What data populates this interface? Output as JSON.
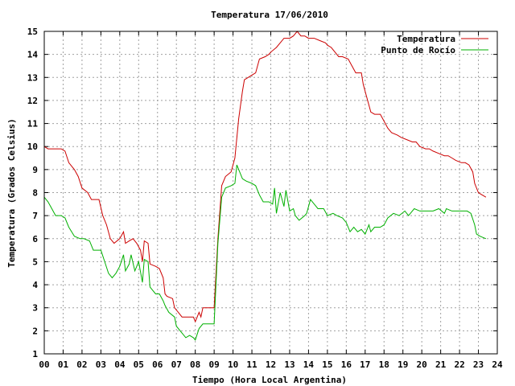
{
  "chart_data": {
    "type": "line",
    "title": "Temperatura 17/06/2010",
    "xlabel": "Tiempo (Hora Local Argentina)",
    "ylabel": "Temperatura (Grados Celsius)",
    "xlim": [
      0,
      24
    ],
    "ylim": [
      1,
      15
    ],
    "x_ticks": [
      0,
      1,
      2,
      3,
      4,
      5,
      6,
      7,
      8,
      9,
      10,
      11,
      12,
      13,
      14,
      15,
      16,
      17,
      18,
      19,
      20,
      21,
      22,
      23,
      24
    ],
    "x_tick_labels": [
      "00",
      "01",
      "02",
      "03",
      "04",
      "05",
      "06",
      "07",
      "08",
      "09",
      "10",
      "11",
      "12",
      "13",
      "14",
      "15",
      "16",
      "17",
      "18",
      "19",
      "20",
      "21",
      "22",
      "23",
      "24"
    ],
    "y_ticks": [
      1,
      2,
      3,
      4,
      5,
      6,
      7,
      8,
      9,
      10,
      11,
      12,
      13,
      14,
      15
    ],
    "grid": true,
    "legend_position": "top-right",
    "series": [
      {
        "name": "Temperatura",
        "color": "#cc0000",
        "points": [
          [
            0.0,
            10.0
          ],
          [
            0.2,
            9.9
          ],
          [
            0.6,
            9.9
          ],
          [
            0.9,
            9.9
          ],
          [
            1.1,
            9.8
          ],
          [
            1.3,
            9.3
          ],
          [
            1.6,
            9.0
          ],
          [
            1.8,
            8.7
          ],
          [
            2.0,
            8.2
          ],
          [
            2.3,
            8.0
          ],
          [
            2.5,
            7.7
          ],
          [
            2.9,
            7.7
          ],
          [
            3.1,
            7.0
          ],
          [
            3.3,
            6.6
          ],
          [
            3.5,
            6.0
          ],
          [
            3.7,
            5.8
          ],
          [
            4.0,
            6.0
          ],
          [
            4.2,
            6.3
          ],
          [
            4.3,
            5.8
          ],
          [
            4.5,
            5.9
          ],
          [
            4.7,
            6.0
          ],
          [
            4.9,
            5.8
          ],
          [
            5.1,
            5.5
          ],
          [
            5.2,
            5.0
          ],
          [
            5.3,
            5.9
          ],
          [
            5.5,
            5.8
          ],
          [
            5.6,
            4.9
          ],
          [
            5.9,
            4.8
          ],
          [
            6.1,
            4.7
          ],
          [
            6.3,
            4.3
          ],
          [
            6.4,
            3.6
          ],
          [
            6.5,
            3.5
          ],
          [
            6.8,
            3.4
          ],
          [
            6.9,
            3.0
          ],
          [
            7.1,
            2.8
          ],
          [
            7.3,
            2.6
          ],
          [
            7.6,
            2.6
          ],
          [
            7.9,
            2.6
          ],
          [
            8.0,
            2.4
          ],
          [
            8.2,
            2.8
          ],
          [
            8.3,
            2.6
          ],
          [
            8.4,
            3.0
          ],
          [
            8.6,
            3.0
          ],
          [
            8.8,
            3.0
          ],
          [
            9.0,
            3.0
          ],
          [
            9.2,
            6.0
          ],
          [
            9.4,
            8.3
          ],
          [
            9.6,
            8.7
          ],
          [
            9.9,
            8.9
          ],
          [
            10.1,
            9.5
          ],
          [
            10.3,
            11.2
          ],
          [
            10.5,
            12.4
          ],
          [
            10.6,
            12.9
          ],
          [
            10.8,
            13.0
          ],
          [
            11.0,
            13.1
          ],
          [
            11.2,
            13.2
          ],
          [
            11.4,
            13.8
          ],
          [
            11.7,
            13.9
          ],
          [
            11.9,
            14.0
          ],
          [
            12.0,
            14.1
          ],
          [
            12.3,
            14.3
          ],
          [
            12.5,
            14.5
          ],
          [
            12.7,
            14.7
          ],
          [
            13.0,
            14.7
          ],
          [
            13.2,
            14.8
          ],
          [
            13.4,
            15.0
          ],
          [
            13.6,
            14.8
          ],
          [
            13.8,
            14.8
          ],
          [
            14.0,
            14.7
          ],
          [
            14.3,
            14.7
          ],
          [
            14.6,
            14.6
          ],
          [
            14.9,
            14.5
          ],
          [
            15.0,
            14.4
          ],
          [
            15.2,
            14.3
          ],
          [
            15.4,
            14.1
          ],
          [
            15.6,
            13.9
          ],
          [
            15.8,
            13.9
          ],
          [
            16.1,
            13.8
          ],
          [
            16.3,
            13.5
          ],
          [
            16.5,
            13.2
          ],
          [
            16.8,
            13.2
          ],
          [
            16.9,
            12.7
          ],
          [
            17.1,
            12.1
          ],
          [
            17.3,
            11.5
          ],
          [
            17.5,
            11.4
          ],
          [
            17.8,
            11.4
          ],
          [
            18.0,
            11.1
          ],
          [
            18.2,
            10.8
          ],
          [
            18.4,
            10.6
          ],
          [
            18.7,
            10.5
          ],
          [
            18.9,
            10.4
          ],
          [
            19.2,
            10.3
          ],
          [
            19.5,
            10.2
          ],
          [
            19.7,
            10.2
          ],
          [
            19.9,
            10.0
          ],
          [
            20.2,
            9.9
          ],
          [
            20.4,
            9.9
          ],
          [
            20.6,
            9.8
          ],
          [
            20.9,
            9.7
          ],
          [
            21.2,
            9.6
          ],
          [
            21.4,
            9.6
          ],
          [
            21.6,
            9.5
          ],
          [
            21.8,
            9.4
          ],
          [
            22.1,
            9.3
          ],
          [
            22.3,
            9.3
          ],
          [
            22.5,
            9.2
          ],
          [
            22.7,
            8.9
          ],
          [
            22.8,
            8.4
          ],
          [
            23.0,
            8.0
          ],
          [
            23.2,
            7.9
          ],
          [
            23.4,
            7.8
          ]
        ]
      },
      {
        "name": "Punto de Rocío",
        "color": "#00b000",
        "points": [
          [
            0.0,
            7.8
          ],
          [
            0.2,
            7.6
          ],
          [
            0.4,
            7.3
          ],
          [
            0.6,
            7.0
          ],
          [
            0.9,
            7.0
          ],
          [
            1.1,
            6.9
          ],
          [
            1.3,
            6.5
          ],
          [
            1.6,
            6.1
          ],
          [
            1.9,
            6.0
          ],
          [
            2.1,
            6.0
          ],
          [
            2.4,
            5.9
          ],
          [
            2.6,
            5.5
          ],
          [
            3.0,
            5.5
          ],
          [
            3.2,
            5.0
          ],
          [
            3.4,
            4.5
          ],
          [
            3.6,
            4.3
          ],
          [
            3.8,
            4.5
          ],
          [
            4.0,
            4.8
          ],
          [
            4.2,
            5.3
          ],
          [
            4.3,
            4.6
          ],
          [
            4.5,
            4.9
          ],
          [
            4.6,
            5.3
          ],
          [
            4.8,
            4.6
          ],
          [
            5.0,
            5.0
          ],
          [
            5.2,
            4.1
          ],
          [
            5.3,
            5.1
          ],
          [
            5.5,
            5.0
          ],
          [
            5.6,
            3.9
          ],
          [
            5.9,
            3.6
          ],
          [
            6.1,
            3.6
          ],
          [
            6.3,
            3.3
          ],
          [
            6.4,
            3.1
          ],
          [
            6.6,
            2.8
          ],
          [
            6.9,
            2.6
          ],
          [
            7.0,
            2.2
          ],
          [
            7.3,
            1.9
          ],
          [
            7.5,
            1.7
          ],
          [
            7.7,
            1.8
          ],
          [
            7.9,
            1.7
          ],
          [
            8.0,
            1.6
          ],
          [
            8.2,
            2.1
          ],
          [
            8.4,
            2.3
          ],
          [
            8.7,
            2.3
          ],
          [
            9.0,
            2.3
          ],
          [
            9.2,
            5.8
          ],
          [
            9.4,
            7.8
          ],
          [
            9.6,
            8.2
          ],
          [
            9.9,
            8.3
          ],
          [
            10.1,
            8.4
          ],
          [
            10.2,
            9.2
          ],
          [
            10.5,
            8.6
          ],
          [
            10.7,
            8.5
          ],
          [
            11.0,
            8.4
          ],
          [
            11.2,
            8.3
          ],
          [
            11.4,
            7.9
          ],
          [
            11.6,
            7.6
          ],
          [
            11.9,
            7.6
          ],
          [
            12.1,
            7.5
          ],
          [
            12.2,
            8.2
          ],
          [
            12.3,
            7.1
          ],
          [
            12.5,
            8.0
          ],
          [
            12.7,
            7.4
          ],
          [
            12.8,
            8.1
          ],
          [
            13.0,
            7.2
          ],
          [
            13.2,
            7.3
          ],
          [
            13.3,
            7.0
          ],
          [
            13.5,
            6.8
          ],
          [
            13.8,
            7.0
          ],
          [
            13.9,
            7.1
          ],
          [
            14.1,
            7.7
          ],
          [
            14.3,
            7.5
          ],
          [
            14.5,
            7.3
          ],
          [
            14.8,
            7.3
          ],
          [
            15.0,
            7.0
          ],
          [
            15.3,
            7.1
          ],
          [
            15.5,
            7.0
          ],
          [
            15.8,
            6.9
          ],
          [
            16.0,
            6.7
          ],
          [
            16.2,
            6.3
          ],
          [
            16.4,
            6.5
          ],
          [
            16.6,
            6.3
          ],
          [
            16.8,
            6.4
          ],
          [
            17.0,
            6.2
          ],
          [
            17.2,
            6.6
          ],
          [
            17.3,
            6.3
          ],
          [
            17.5,
            6.5
          ],
          [
            17.8,
            6.5
          ],
          [
            18.0,
            6.6
          ],
          [
            18.2,
            6.9
          ],
          [
            18.5,
            7.1
          ],
          [
            18.8,
            7.0
          ],
          [
            19.1,
            7.2
          ],
          [
            19.3,
            7.0
          ],
          [
            19.6,
            7.3
          ],
          [
            19.9,
            7.2
          ],
          [
            20.1,
            7.2
          ],
          [
            20.3,
            7.2
          ],
          [
            20.6,
            7.2
          ],
          [
            20.9,
            7.3
          ],
          [
            21.2,
            7.1
          ],
          [
            21.3,
            7.3
          ],
          [
            21.6,
            7.2
          ],
          [
            21.9,
            7.2
          ],
          [
            22.2,
            7.2
          ],
          [
            22.4,
            7.2
          ],
          [
            22.6,
            7.1
          ],
          [
            22.8,
            6.6
          ],
          [
            22.9,
            6.2
          ],
          [
            23.1,
            6.1
          ],
          [
            23.4,
            6.0
          ]
        ]
      }
    ]
  }
}
